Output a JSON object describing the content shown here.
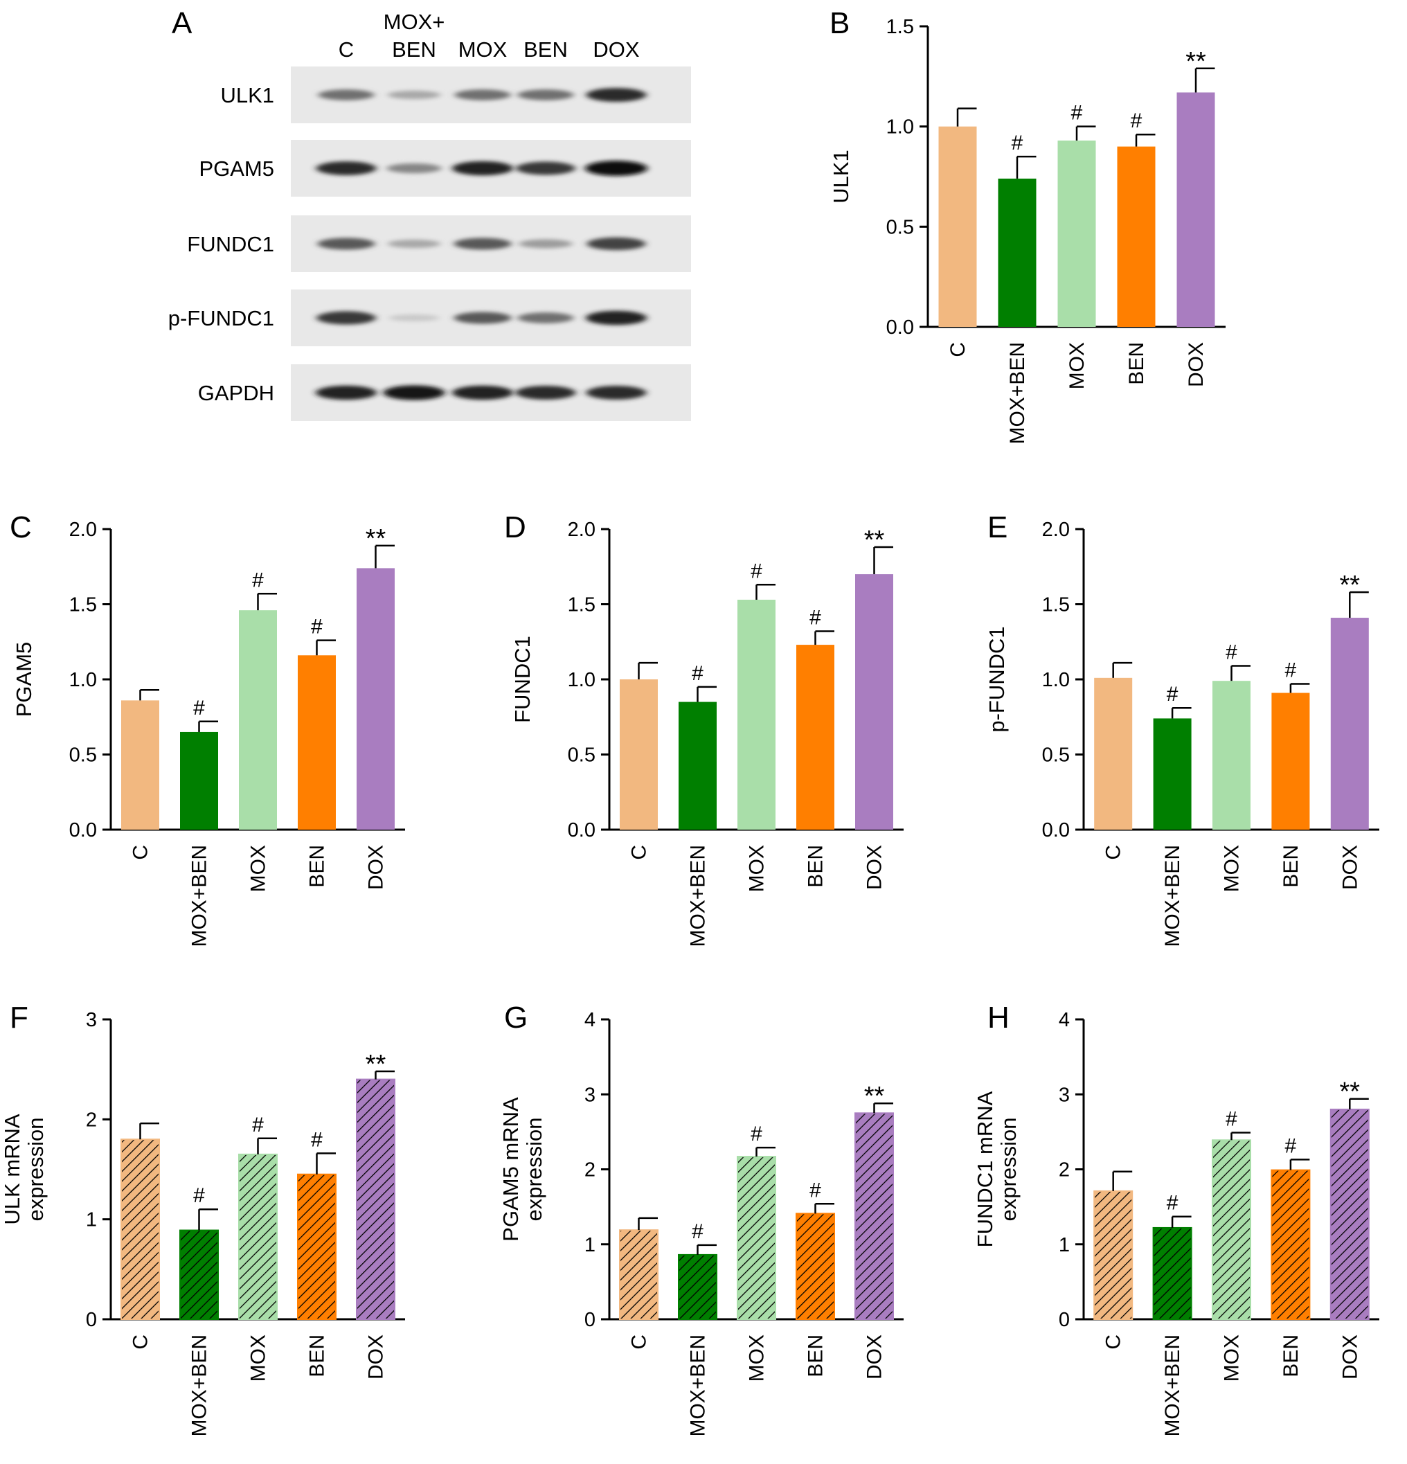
{
  "figure": {
    "groups": [
      "C",
      "MOX+BEN",
      "MOX",
      "BEN",
      "DOX"
    ],
    "group_colors": [
      "#f2b880",
      "#007f00",
      "#a9dea9",
      "#ff7f00",
      "#a97dc0"
    ],
    "significance_symbols": {
      "hash": "#",
      "double_star": "**"
    }
  },
  "western_blot": {
    "panel_letter": "A",
    "lane_header_line1": [
      "",
      "MOX+",
      "",
      "",
      ""
    ],
    "lane_header_line2": [
      "C",
      "BEN",
      "MOX",
      "BEN",
      "DOX"
    ],
    "proteins": [
      {
        "name": "ULK1",
        "intensity": [
          0.55,
          0.3,
          0.55,
          0.55,
          0.85
        ]
      },
      {
        "name": "PGAM5",
        "intensity": [
          0.85,
          0.45,
          0.9,
          0.8,
          1.0
        ]
      },
      {
        "name": "FUNDC1",
        "intensity": [
          0.65,
          0.3,
          0.65,
          0.35,
          0.75
        ]
      },
      {
        "name": "p-FUNDC1",
        "intensity": [
          0.8,
          0.15,
          0.65,
          0.55,
          0.9
        ]
      },
      {
        "name": "GAPDH",
        "intensity": [
          0.9,
          0.95,
          0.9,
          0.85,
          0.85
        ]
      }
    ]
  },
  "chart_data": [
    {
      "panel": "B",
      "type": "bar",
      "pattern": "solid",
      "categories": [
        "C",
        "MOX+BEN",
        "MOX",
        "BEN",
        "DOX"
      ],
      "values": [
        1.0,
        0.74,
        0.93,
        0.9,
        1.17
      ],
      "errors": [
        0.09,
        0.11,
        0.07,
        0.06,
        0.12
      ],
      "significance": [
        "",
        "#",
        "#",
        "#",
        "**"
      ],
      "ylabel_lines": [
        "ULK1"
      ],
      "ylim": [
        0,
        1.5
      ],
      "yticks": [
        "0.0",
        "0.5",
        "1.0",
        "1.5"
      ]
    },
    {
      "panel": "C",
      "type": "bar",
      "pattern": "solid",
      "categories": [
        "C",
        "MOX+BEN",
        "MOX",
        "BEN",
        "DOX"
      ],
      "values": [
        0.86,
        0.65,
        1.46,
        1.16,
        1.74
      ],
      "errors": [
        0.07,
        0.07,
        0.11,
        0.1,
        0.15
      ],
      "significance": [
        "",
        "#",
        "#",
        "#",
        "**"
      ],
      "ylabel_lines": [
        "PGAM5"
      ],
      "ylim": [
        0,
        2.0
      ],
      "yticks": [
        "0.0",
        "0.5",
        "1.0",
        "1.5",
        "2.0"
      ]
    },
    {
      "panel": "D",
      "type": "bar",
      "pattern": "solid",
      "categories": [
        "C",
        "MOX+BEN",
        "MOX",
        "BEN",
        "DOX"
      ],
      "values": [
        1.0,
        0.85,
        1.53,
        1.23,
        1.7
      ],
      "errors": [
        0.11,
        0.1,
        0.1,
        0.09,
        0.18
      ],
      "significance": [
        "",
        "#",
        "#",
        "#",
        "**"
      ],
      "ylabel_lines": [
        "FUNDC1"
      ],
      "ylim": [
        0,
        2.0
      ],
      "yticks": [
        "0.0",
        "0.5",
        "1.0",
        "1.5",
        "2.0"
      ]
    },
    {
      "panel": "E",
      "type": "bar",
      "pattern": "solid",
      "categories": [
        "C",
        "MOX+BEN",
        "MOX",
        "BEN",
        "DOX"
      ],
      "values": [
        1.01,
        0.74,
        0.99,
        0.91,
        1.41
      ],
      "errors": [
        0.1,
        0.07,
        0.1,
        0.06,
        0.17
      ],
      "significance": [
        "",
        "#",
        "#",
        "#",
        "**"
      ],
      "ylabel_lines": [
        "p-FUNDC1"
      ],
      "ylim": [
        0,
        2.0
      ],
      "yticks": [
        "0.0",
        "0.5",
        "1.0",
        "1.5",
        "2.0"
      ]
    },
    {
      "panel": "F",
      "type": "bar",
      "pattern": "hatched",
      "categories": [
        "C",
        "MOX+BEN",
        "MOX",
        "BEN",
        "DOX"
      ],
      "values": [
        1.8,
        0.89,
        1.65,
        1.45,
        2.4
      ],
      "errors": [
        0.16,
        0.21,
        0.16,
        0.21,
        0.08
      ],
      "significance": [
        "",
        "#",
        "#",
        "#",
        "**"
      ],
      "ylabel_lines": [
        "ULK mRNA",
        "expression"
      ],
      "ylim": [
        0,
        3
      ],
      "yticks": [
        "0",
        "1",
        "2",
        "3"
      ]
    },
    {
      "panel": "G",
      "type": "bar",
      "pattern": "hatched",
      "categories": [
        "C",
        "MOX+BEN",
        "MOX",
        "BEN",
        "DOX"
      ],
      "values": [
        1.19,
        0.86,
        2.17,
        1.41,
        2.75
      ],
      "errors": [
        0.16,
        0.13,
        0.12,
        0.13,
        0.13
      ],
      "significance": [
        "",
        "#",
        "#",
        "#",
        "**"
      ],
      "ylabel_lines": [
        "PGAM5 mRNA",
        "expression"
      ],
      "ylim": [
        0,
        4
      ],
      "yticks": [
        "0",
        "1",
        "2",
        "3",
        "4"
      ]
    },
    {
      "panel": "H",
      "type": "bar",
      "pattern": "hatched",
      "categories": [
        "C",
        "MOX+BEN",
        "MOX",
        "BEN",
        "DOX"
      ],
      "values": [
        1.71,
        1.22,
        2.39,
        1.99,
        2.8
      ],
      "errors": [
        0.26,
        0.15,
        0.1,
        0.14,
        0.14
      ],
      "significance": [
        "",
        "#",
        "#",
        "#",
        "**"
      ],
      "ylabel_lines": [
        "FUNDC1 mRNA",
        "expression"
      ],
      "ylim": [
        0,
        4
      ],
      "yticks": [
        "0",
        "1",
        "2",
        "3",
        "4"
      ]
    }
  ]
}
